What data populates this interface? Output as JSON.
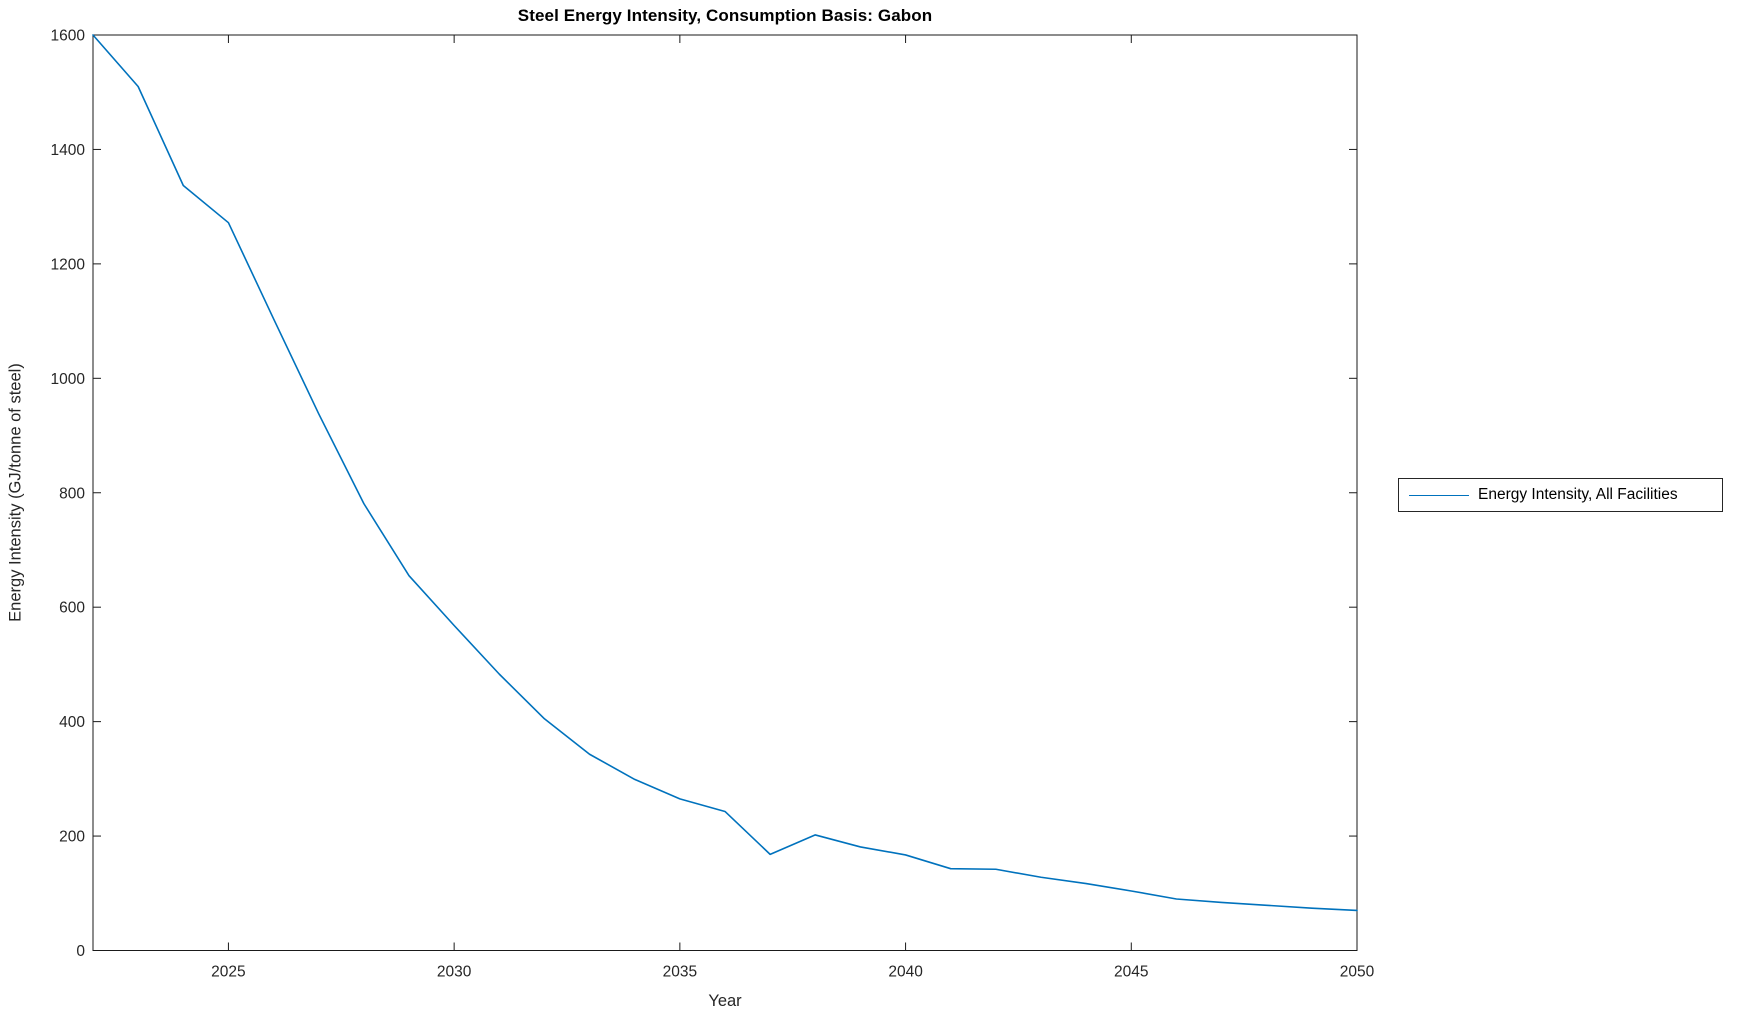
{
  "chart_data": {
    "type": "line",
    "title": "Steel Energy Intensity, Consumption Basis: Gabon",
    "xlabel": "Year",
    "ylabel": "Energy Intensity (GJ/tonne of steel)",
    "xlim": [
      2022,
      2050
    ],
    "ylim": [
      0,
      1600
    ],
    "xticks": [
      2025,
      2030,
      2035,
      2040,
      2045,
      2050
    ],
    "yticks": [
      0,
      200,
      400,
      600,
      800,
      1000,
      1200,
      1400,
      1600
    ],
    "grid": false,
    "legend_position": "outside-right",
    "series": [
      {
        "name": "Energy Intensity, All Facilities",
        "color": "#0072BD",
        "x": [
          2022,
          2023,
          2024,
          2025,
          2026,
          2027,
          2028,
          2029,
          2030,
          2031,
          2032,
          2033,
          2034,
          2035,
          2036,
          2037,
          2038,
          2039,
          2040,
          2041,
          2042,
          2043,
          2044,
          2045,
          2046,
          2047,
          2048,
          2049,
          2050
        ],
        "values": [
          1600,
          1510,
          1337,
          1272,
          1104,
          938,
          781,
          655,
          568,
          483,
          405,
          343,
          299,
          265,
          243,
          168,
          202,
          181,
          167,
          143,
          142,
          128,
          117,
          104,
          90,
          84,
          79,
          74,
          70
        ]
      }
    ],
    "axis_color": "#1a1a1a",
    "tick_label_color": "#262626",
    "tick_label_font_size": 15.5
  }
}
